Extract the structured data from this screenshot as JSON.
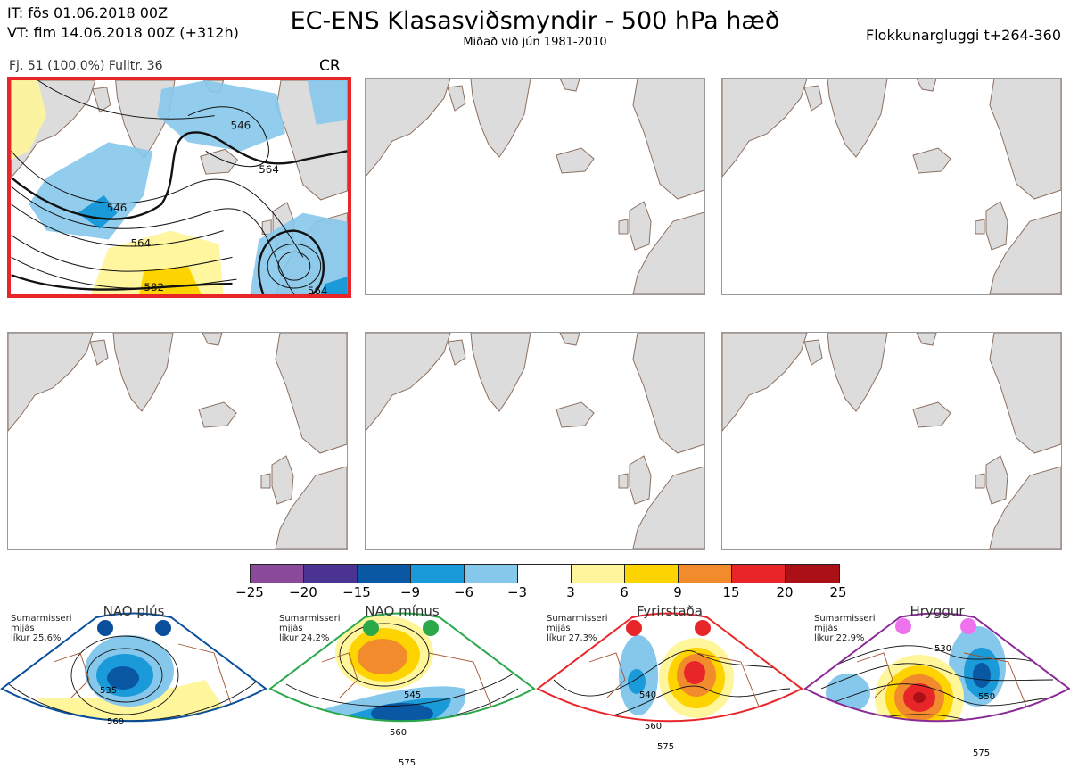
{
  "header": {
    "line1": "IT: fös 01.06.2018 00Z",
    "line2": "VT: fim 14.06.2018 00Z  (+312h)",
    "title": "EC-ENS Klasasviðsmyndir - 500 hPa hæð",
    "subtitle": "Miðað við jún 1981-2010",
    "right": "Flokkunargluggi t+264-360"
  },
  "panel1": {
    "meta": "Fj. 51 (100.0%)   Fulltr. 36",
    "regime_code": "CR",
    "contour_labels": [
      "546",
      "546",
      "564",
      "564",
      "582",
      "564",
      "546"
    ]
  },
  "colors": {
    "accent_red": "#e8262a",
    "nao_plus": "#0a4f9b",
    "nao_minus": "#2aa84a",
    "blocking": "#e8262a",
    "ridge": "#8a2a96"
  },
  "colorbar": {
    "colors": [
      "#8a4a9c",
      "#4a3391",
      "#0a57a4",
      "#1a9ad8",
      "#86c8ec",
      "#ffffff",
      "#fff59a",
      "#fdd400",
      "#f28b2c",
      "#e8262a",
      "#aa1016"
    ],
    "ticks": [
      "−25",
      "−20",
      "−15",
      "−9",
      "−6",
      "−3",
      "3",
      "6",
      "9",
      "15",
      "20",
      "25"
    ]
  },
  "regimes": [
    {
      "name": "NAO plús",
      "note": [
        "Sumarmisseri",
        "mjjás",
        "líkur 25,6%"
      ],
      "labels": [
        "535",
        "560"
      ]
    },
    {
      "name": "NAO mínus",
      "note": [
        "Sumarmisseri",
        "mjjás",
        "líkur 24,2%"
      ],
      "labels": [
        "545",
        "560",
        "575"
      ]
    },
    {
      "name": "Fyrirstaða",
      "note": [
        "Sumarmisseri",
        "mjjás",
        "líkur 27,3%"
      ],
      "labels": [
        "540",
        "560",
        "575"
      ]
    },
    {
      "name": "Hryggur",
      "note": [
        "Sumarmisseri",
        "mjjás",
        "líkur 22,9%"
      ],
      "labels": [
        "530",
        "550",
        "575"
      ]
    }
  ]
}
